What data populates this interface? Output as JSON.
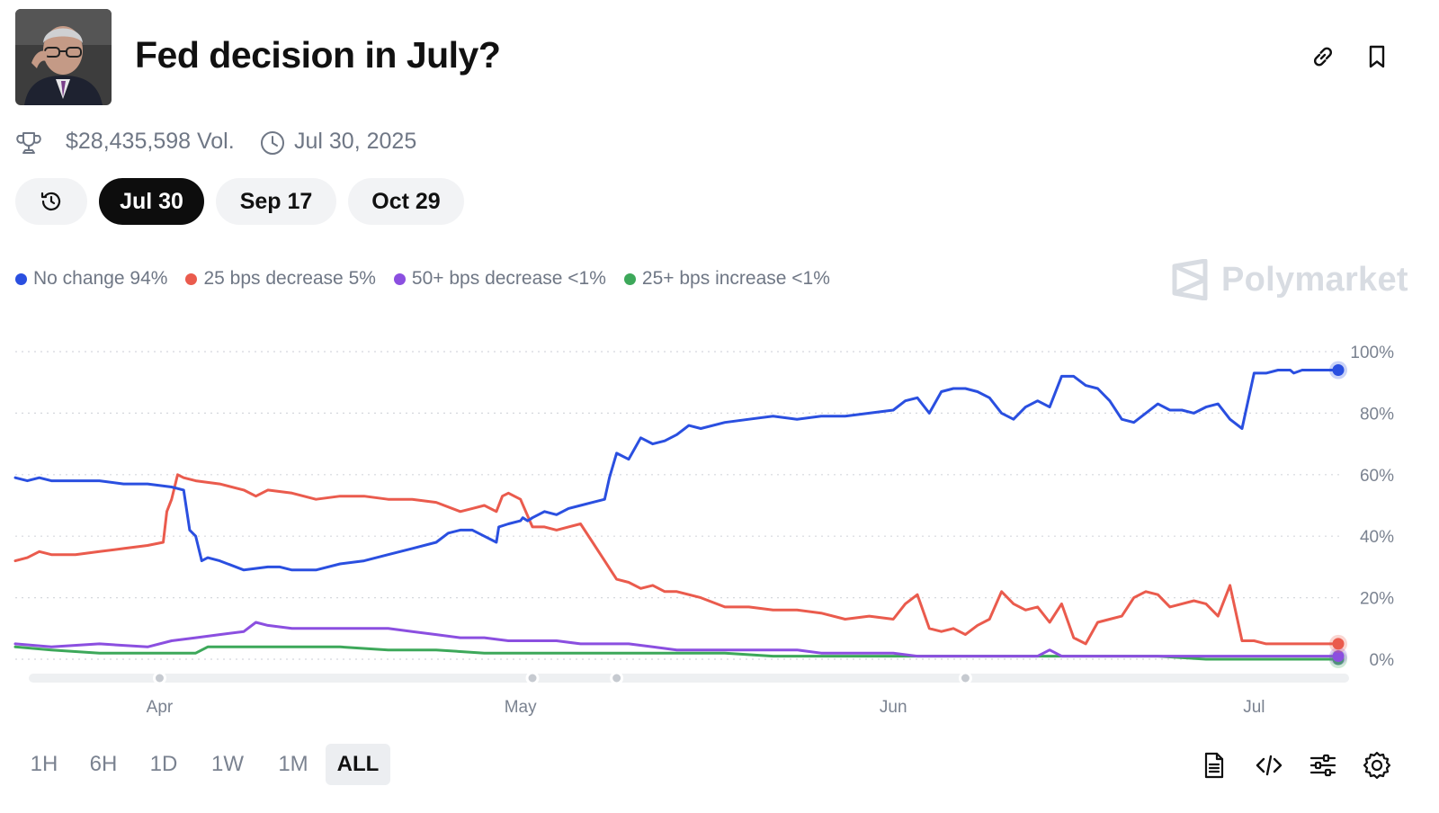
{
  "header": {
    "title": "Fed decision in July?",
    "volume": "$28,435,598 Vol.",
    "end_date": "Jul 30, 2025"
  },
  "icons": {
    "avatar": "person-photo-avatar",
    "link": "link-icon",
    "bookmark": "bookmark-icon",
    "trophy": "trophy-icon",
    "clock": "clock-icon",
    "history": "history-icon",
    "document": "document-icon",
    "embed": "code-icon",
    "filters": "sliders-icon",
    "settings": "gear-icon"
  },
  "date_tabs": [
    {
      "label": "Jul 30",
      "active": true
    },
    {
      "label": "Sep 17",
      "active": false
    },
    {
      "label": "Oct 29",
      "active": false
    }
  ],
  "brand": "Polymarket",
  "time_ranges": [
    {
      "label": "1H",
      "active": false
    },
    {
      "label": "6H",
      "active": false
    },
    {
      "label": "1D",
      "active": false
    },
    {
      "label": "1W",
      "active": false
    },
    {
      "label": "1M",
      "active": false
    },
    {
      "label": "ALL",
      "active": true
    }
  ],
  "colors": {
    "no_change": "#2a4fe0",
    "decrease_25": "#ea5b4d",
    "decrease_50": "#8b4fe0",
    "increase_25": "#3da85a",
    "grid": "#d5d8dd",
    "axis_text": "#7a8290"
  },
  "chart_data": {
    "type": "line",
    "y_ticks": [
      "0%",
      "20%",
      "40%",
      "60%",
      "80%",
      "100%"
    ],
    "ylim": [
      0,
      100
    ],
    "x_ticks": [
      {
        "label": "Apr",
        "day": 29
      },
      {
        "label": "May",
        "day": 59
      },
      {
        "label": "Jun",
        "day": 90
      },
      {
        "label": "Jul",
        "day": 120
      }
    ],
    "x_range_days": [
      17,
      127
    ],
    "grid": "horizontal-dotted",
    "timeline_markers_days": [
      29,
      60,
      67,
      96
    ],
    "series": [
      {
        "name": "No change",
        "legend": "No change 94%",
        "color": "#2a4fe0",
        "x": [
          17,
          18,
          19,
          20,
          22,
          24,
          26,
          28,
          30,
          31,
          31.5,
          32,
          32.5,
          33,
          34,
          36,
          38,
          39,
          40,
          42,
          44,
          46,
          48,
          50,
          52,
          53,
          54,
          55,
          56,
          57,
          57.2,
          58,
          59,
          59.2,
          59.6,
          60,
          61,
          62,
          63,
          64,
          65,
          66,
          66.4,
          67,
          68,
          69,
          70,
          71,
          72,
          73,
          74,
          76,
          78,
          80,
          82,
          84,
          86,
          88,
          90,
          91,
          92,
          93,
          94,
          95,
          96,
          97,
          98,
          99,
          100,
          101,
          102,
          103,
          104,
          105,
          106,
          107,
          108,
          109,
          110,
          111,
          112,
          113,
          114,
          115,
          116,
          117,
          118,
          119,
          120,
          121,
          122,
          123,
          123.3,
          124,
          125,
          126,
          127
        ],
        "values": [
          59,
          58,
          59,
          58,
          58,
          58,
          57,
          57,
          56,
          55,
          42,
          40,
          32,
          33,
          32,
          29,
          30,
          30,
          29,
          29,
          31,
          32,
          34,
          36,
          38,
          41,
          42,
          42,
          40,
          38,
          43,
          44,
          45,
          46,
          45,
          46,
          48,
          47,
          49,
          50,
          51,
          52,
          59,
          67,
          65,
          72,
          70,
          71,
          73,
          76,
          75,
          77,
          78,
          79,
          78,
          79,
          79,
          80,
          81,
          84,
          85,
          80,
          87,
          88,
          88,
          87,
          85,
          80,
          78,
          82,
          84,
          82,
          92,
          92,
          89,
          88,
          84,
          78,
          77,
          80,
          83,
          81,
          81,
          80,
          82,
          83,
          78,
          75,
          93,
          93,
          94,
          94,
          93,
          94,
          94,
          94,
          94
        ]
      },
      {
        "name": "25 bps decrease",
        "legend": "25 bps decrease 5%",
        "color": "#ea5b4d",
        "x": [
          17,
          18,
          19,
          20,
          22,
          24,
          26,
          28,
          29.3,
          29.6,
          30,
          30.5,
          31,
          32,
          34,
          36,
          37,
          38,
          40,
          42,
          44,
          46,
          48,
          50,
          52,
          54,
          55,
          56,
          57,
          57.5,
          58,
          59,
          60,
          61,
          62,
          63,
          64,
          65,
          66,
          67,
          68,
          69,
          70,
          71,
          72,
          74,
          76,
          78,
          80,
          82,
          84,
          86,
          88,
          90,
          91,
          92,
          93,
          94,
          95,
          96,
          97,
          98,
          99,
          100,
          101,
          102,
          103,
          104,
          105,
          106,
          107,
          108,
          109,
          110,
          111,
          112,
          113,
          114,
          115,
          116,
          117,
          118,
          119,
          120,
          121,
          122,
          123,
          124,
          125,
          126,
          127
        ],
        "values": [
          32,
          33,
          35,
          34,
          34,
          35,
          36,
          37,
          38,
          48,
          52,
          60,
          59,
          58,
          57,
          55,
          53,
          55,
          54,
          52,
          53,
          53,
          52,
          52,
          51,
          48,
          49,
          50,
          48,
          53,
          54,
          52,
          43,
          43,
          42,
          43,
          44,
          38,
          32,
          26,
          25,
          23,
          24,
          22,
          22,
          20,
          17,
          17,
          16,
          16,
          15,
          13,
          14,
          13,
          18,
          21,
          10,
          9,
          10,
          8,
          11,
          13,
          22,
          18,
          16,
          17,
          12,
          18,
          7,
          5,
          12,
          13,
          14,
          20,
          22,
          21,
          17,
          18,
          19,
          18,
          14,
          24,
          6,
          6,
          5,
          5,
          5,
          5,
          5,
          5,
          5
        ]
      },
      {
        "name": "50+ bps decrease",
        "legend": "50+ bps decrease <1%",
        "color": "#8b4fe0",
        "x": [
          17,
          20,
          24,
          28,
          30,
          32,
          34,
          36,
          37,
          38,
          40,
          42,
          44,
          46,
          48,
          50,
          52,
          54,
          56,
          58,
          60,
          62,
          64,
          66,
          68,
          70,
          72,
          74,
          76,
          78,
          80,
          82,
          84,
          86,
          88,
          90,
          92,
          94,
          96,
          98,
          100,
          102,
          103,
          104,
          106,
          108,
          110,
          112,
          114,
          116,
          118,
          120,
          122,
          124,
          126,
          127
        ],
        "values": [
          5,
          4,
          5,
          4,
          6,
          7,
          8,
          9,
          12,
          11,
          10,
          10,
          10,
          10,
          10,
          9,
          8,
          7,
          7,
          6,
          6,
          6,
          5,
          5,
          5,
          4,
          3,
          3,
          3,
          3,
          3,
          3,
          2,
          2,
          2,
          2,
          1,
          1,
          1,
          1,
          1,
          1,
          3,
          1,
          1,
          1,
          1,
          1,
          1,
          1,
          1,
          1,
          1,
          1,
          1,
          1
        ]
      },
      {
        "name": "25+ bps increase",
        "legend": "25+ bps increase <1%",
        "color": "#3da85a",
        "x": [
          17,
          20,
          24,
          28,
          32,
          33,
          36,
          40,
          44,
          48,
          52,
          56,
          60,
          64,
          68,
          72,
          76,
          80,
          84,
          88,
          92,
          96,
          100,
          104,
          108,
          112,
          116,
          120,
          124,
          127
        ],
        "values": [
          4,
          3,
          2,
          2,
          2,
          4,
          4,
          4,
          4,
          3,
          3,
          2,
          2,
          2,
          2,
          2,
          2,
          1,
          1,
          1,
          1,
          1,
          1,
          1,
          1,
          1,
          0,
          0,
          0,
          0
        ]
      }
    ]
  }
}
